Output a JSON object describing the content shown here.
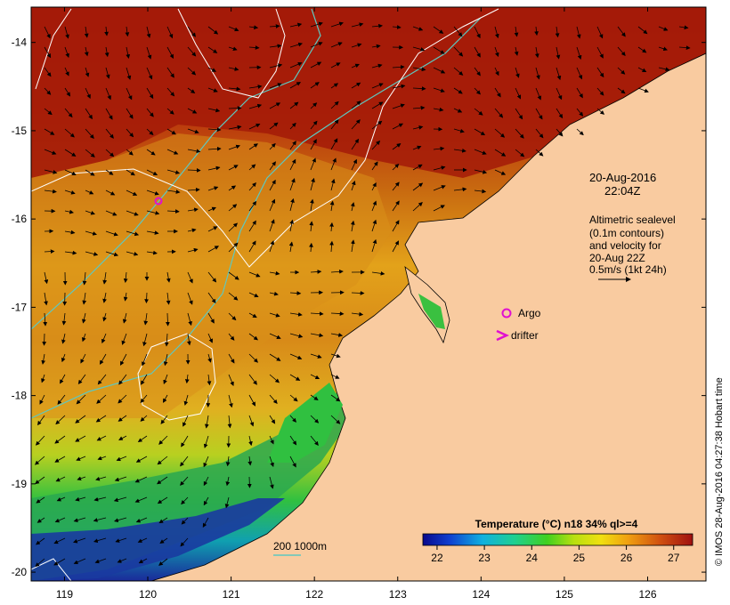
{
  "map": {
    "x_ticks": [
      "119",
      "120",
      "121",
      "122",
      "123",
      "124",
      "125",
      "126"
    ],
    "y_ticks": [
      "-14",
      "-15",
      "-16",
      "-17",
      "-18",
      "-19",
      "-20"
    ],
    "lon_range": [
      118.6,
      126.7
    ],
    "lat_range": [
      -20.1,
      -13.6
    ],
    "colors": {
      "land": "#f9cba0",
      "sea_warm": "#a01c0a",
      "sea_cool": "#1a2a9a",
      "contour": "#ffffff",
      "bathymetry": "#5ec8c0",
      "argo": "#e010d0"
    }
  },
  "annotation": {
    "date": "20-Aug-2016",
    "time": "22:04Z",
    "desc_line1": "Altimetric sealevel",
    "desc_line2": "(0.1m contours)",
    "desc_line3": "and velocity for",
    "desc_line4": "20-Aug 22Z",
    "scale_text": "0.5m/s (1kt 24h)"
  },
  "legend": {
    "argo_label": "Argo",
    "drifter_label": "drifter",
    "depth_label": "200  1000m"
  },
  "colorbar": {
    "title": "Temperature (°C) n18 34% ql>=4",
    "tick_labels": [
      "22",
      "23",
      "24",
      "25",
      "26",
      "27"
    ],
    "min": 21.7,
    "max": 27.4
  },
  "credit": "© IMOS 28-Aug-2016 04:27:38 Hobart time"
}
